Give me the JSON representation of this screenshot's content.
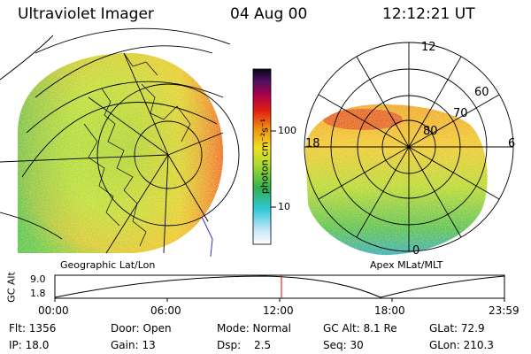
{
  "header": {
    "instrument": "Ultraviolet Imager",
    "date": "04 Aug 00",
    "time": "12:12:21 UT"
  },
  "left_panel": {
    "label": "Geographic Lat/Lon"
  },
  "right_panel": {
    "label": "Apex MLat/MLT",
    "mlt_labels": [
      "12",
      "18",
      "6",
      "0"
    ],
    "mlat_labels": [
      "60",
      "70",
      "80"
    ]
  },
  "colorbar": {
    "unit_label": "photon cm⁻²s⁻¹",
    "tick_labels": [
      "100",
      "10"
    ]
  },
  "altitude_plot": {
    "ylabel": "GC Alt",
    "y_ticks": [
      "9.0",
      "1.8"
    ],
    "x_ticks": [
      "00:00",
      "06:00",
      "12:00",
      "18:00",
      "23:59"
    ],
    "current_time_marker": "12:12"
  },
  "info": {
    "flt": "Flt: 1356",
    "door": "Door: Open",
    "mode": "Mode: Normal",
    "gc_alt": "GC Alt: 8.1 Re",
    "glat": "GLat:  72.9",
    "ip": "IP: 18.0",
    "gain": "Gain: 13",
    "dsp_label": "Dsp:",
    "dsp_value": "2.5",
    "seq": "Seq: 30",
    "glon": "GLon: 210.3"
  },
  "colors": {
    "marker": "#e00000",
    "grid": "#000000"
  }
}
